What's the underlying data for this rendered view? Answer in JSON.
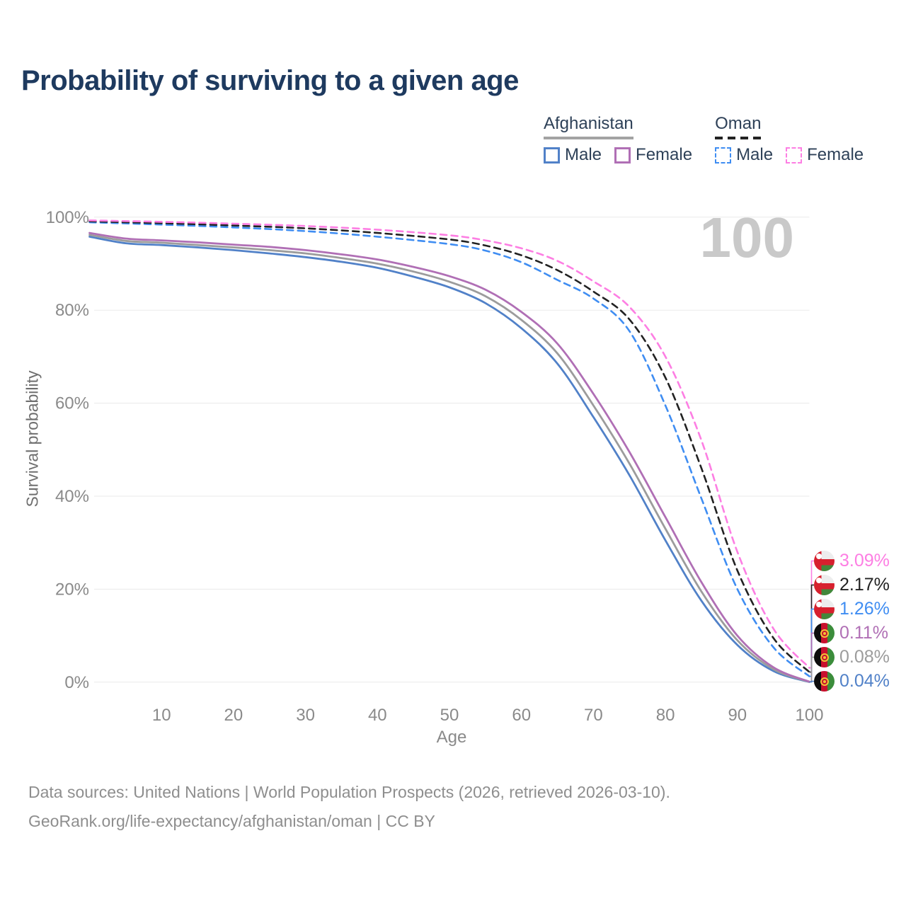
{
  "title": "Probability of surviving to a given age",
  "watermark": "100",
  "legend": {
    "groups": [
      {
        "country": "Afghanistan",
        "line_style": "solid",
        "underline_color": "#a3a3a3",
        "items": [
          {
            "label": "Male",
            "color": "#5181c8"
          },
          {
            "label": "Female",
            "color": "#b06fb5"
          }
        ]
      },
      {
        "country": "Oman",
        "line_style": "dashed",
        "underline_color": "#222222",
        "items": [
          {
            "label": "Male",
            "color": "#3f8df2"
          },
          {
            "label": "Female",
            "color": "#fd7ee3"
          }
        ]
      }
    ]
  },
  "axes": {
    "x": {
      "title": "Age",
      "min": 0,
      "max": 100,
      "ticks": [
        {
          "v": 10,
          "label": "10"
        },
        {
          "v": 20,
          "label": "20"
        },
        {
          "v": 30,
          "label": "30"
        },
        {
          "v": 40,
          "label": "40"
        },
        {
          "v": 50,
          "label": "50"
        },
        {
          "v": 60,
          "label": "60"
        },
        {
          "v": 70,
          "label": "70"
        },
        {
          "v": 80,
          "label": "80"
        },
        {
          "v": 90,
          "label": "90"
        },
        {
          "v": 100,
          "label": "100"
        }
      ]
    },
    "y": {
      "title": "Survival probability",
      "min": 0,
      "max": 100,
      "ticks": [
        {
          "v": 0,
          "label": "0%"
        },
        {
          "v": 20,
          "label": "20%"
        },
        {
          "v": 40,
          "label": "40%"
        },
        {
          "v": 60,
          "label": "60%"
        },
        {
          "v": 80,
          "label": "80%"
        },
        {
          "v": 100,
          "label": "100%"
        }
      ]
    }
  },
  "chart_data": {
    "type": "line",
    "title": "Probability of surviving to a given age",
    "xlabel": "Age",
    "ylabel": "Survival probability",
    "xlim": [
      0,
      100
    ],
    "ylim": [
      0,
      100
    ],
    "grid": "horizontal",
    "legend_position": "top-right",
    "series": [
      {
        "name": "Oman — Female",
        "country": "Oman",
        "sex": "Female",
        "flag": "oman",
        "color": "#fd7ee3",
        "dash": true,
        "end_label": "3.09%",
        "end_value": 3.09,
        "points": [
          [
            0,
            99.3
          ],
          [
            10,
            99.0
          ],
          [
            20,
            98.6
          ],
          [
            30,
            98.1
          ],
          [
            40,
            97.3
          ],
          [
            50,
            96.1
          ],
          [
            55,
            95.0
          ],
          [
            60,
            93.3
          ],
          [
            65,
            90.6
          ],
          [
            70,
            86.2
          ],
          [
            75,
            80.7
          ],
          [
            80,
            70.0
          ],
          [
            85,
            52.0
          ],
          [
            90,
            28.0
          ],
          [
            95,
            11.5
          ],
          [
            100,
            3.09
          ]
        ]
      },
      {
        "name": "Oman — Both sexes",
        "country": "Oman",
        "sex": "Both",
        "flag": "oman",
        "color": "#222222",
        "dash": true,
        "end_label": "2.17%",
        "end_value": 2.17,
        "points": [
          [
            0,
            99.1
          ],
          [
            10,
            98.7
          ],
          [
            20,
            98.2
          ],
          [
            30,
            97.6
          ],
          [
            40,
            96.6
          ],
          [
            50,
            95.2
          ],
          [
            55,
            93.9
          ],
          [
            60,
            91.8
          ],
          [
            65,
            88.6
          ],
          [
            70,
            84.0
          ],
          [
            75,
            78.0
          ],
          [
            80,
            65.5
          ],
          [
            85,
            46.0
          ],
          [
            90,
            24.0
          ],
          [
            95,
            9.5
          ],
          [
            100,
            2.17
          ]
        ]
      },
      {
        "name": "Oman — Male",
        "country": "Oman",
        "sex": "Male",
        "flag": "oman",
        "color": "#3f8df2",
        "dash": true,
        "end_label": "1.26%",
        "end_value": 1.26,
        "points": [
          [
            0,
            98.9
          ],
          [
            10,
            98.4
          ],
          [
            20,
            97.8
          ],
          [
            30,
            97.0
          ],
          [
            40,
            95.8
          ],
          [
            50,
            94.2
          ],
          [
            55,
            92.8
          ],
          [
            60,
            90.3
          ],
          [
            65,
            86.5
          ],
          [
            70,
            82.5
          ],
          [
            75,
            75.5
          ],
          [
            80,
            59.5
          ],
          [
            85,
            39.5
          ],
          [
            90,
            20.0
          ],
          [
            95,
            7.5
          ],
          [
            100,
            1.26
          ]
        ]
      },
      {
        "name": "Afghanistan — Female",
        "country": "Afghanistan",
        "sex": "Female",
        "flag": "afghanistan",
        "color": "#b06fb5",
        "dash": false,
        "end_label": "0.11%",
        "end_value": 0.11,
        "points": [
          [
            0,
            96.6
          ],
          [
            5,
            95.4
          ],
          [
            10,
            95.0
          ],
          [
            15,
            94.6
          ],
          [
            20,
            94.1
          ],
          [
            25,
            93.6
          ],
          [
            30,
            92.9
          ],
          [
            35,
            92.0
          ],
          [
            40,
            90.9
          ],
          [
            45,
            89.3
          ],
          [
            50,
            87.3
          ],
          [
            55,
            84.4
          ],
          [
            60,
            79.6
          ],
          [
            65,
            72.8
          ],
          [
            70,
            62.0
          ],
          [
            75,
            49.5
          ],
          [
            80,
            35.5
          ],
          [
            85,
            21.5
          ],
          [
            90,
            10.0
          ],
          [
            95,
            3.2
          ],
          [
            100,
            0.11
          ]
        ]
      },
      {
        "name": "Afghanistan — Both sexes",
        "country": "Afghanistan",
        "sex": "Both",
        "flag": "afghanistan",
        "color": "#9c9c9c",
        "dash": false,
        "end_label": "0.08%",
        "end_value": 0.08,
        "points": [
          [
            0,
            96.2
          ],
          [
            5,
            94.9
          ],
          [
            10,
            94.5
          ],
          [
            15,
            94.0
          ],
          [
            20,
            93.5
          ],
          [
            25,
            92.9
          ],
          [
            30,
            92.2
          ],
          [
            35,
            91.2
          ],
          [
            40,
            90.0
          ],
          [
            45,
            88.3
          ],
          [
            50,
            86.1
          ],
          [
            55,
            83.0
          ],
          [
            60,
            77.9
          ],
          [
            65,
            70.7
          ],
          [
            70,
            59.5
          ],
          [
            75,
            47.0
          ],
          [
            80,
            33.0
          ],
          [
            85,
            19.5
          ],
          [
            90,
            9.0
          ],
          [
            95,
            2.8
          ],
          [
            100,
            0.08
          ]
        ]
      },
      {
        "name": "Afghanistan — Male",
        "country": "Afghanistan",
        "sex": "Male",
        "flag": "afghanistan",
        "color": "#5181c8",
        "dash": false,
        "end_label": "0.04%",
        "end_value": 0.04,
        "points": [
          [
            0,
            95.8
          ],
          [
            5,
            94.4
          ],
          [
            10,
            94.0
          ],
          [
            15,
            93.5
          ],
          [
            20,
            92.9
          ],
          [
            25,
            92.2
          ],
          [
            30,
            91.4
          ],
          [
            35,
            90.4
          ],
          [
            40,
            89.1
          ],
          [
            45,
            87.2
          ],
          [
            50,
            84.9
          ],
          [
            55,
            81.5
          ],
          [
            60,
            76.1
          ],
          [
            65,
            68.5
          ],
          [
            70,
            57.0
          ],
          [
            75,
            44.5
          ],
          [
            80,
            30.5
          ],
          [
            85,
            17.5
          ],
          [
            90,
            8.0
          ],
          [
            95,
            2.4
          ],
          [
            100,
            0.04
          ]
        ]
      }
    ]
  },
  "footer": {
    "line1": "Data sources: United Nations | World Population Prospects (2026, retrieved 2026-03-10).",
    "line2": "GeoRank.org/life-expectancy/afghanistan/oman | CC BY"
  }
}
